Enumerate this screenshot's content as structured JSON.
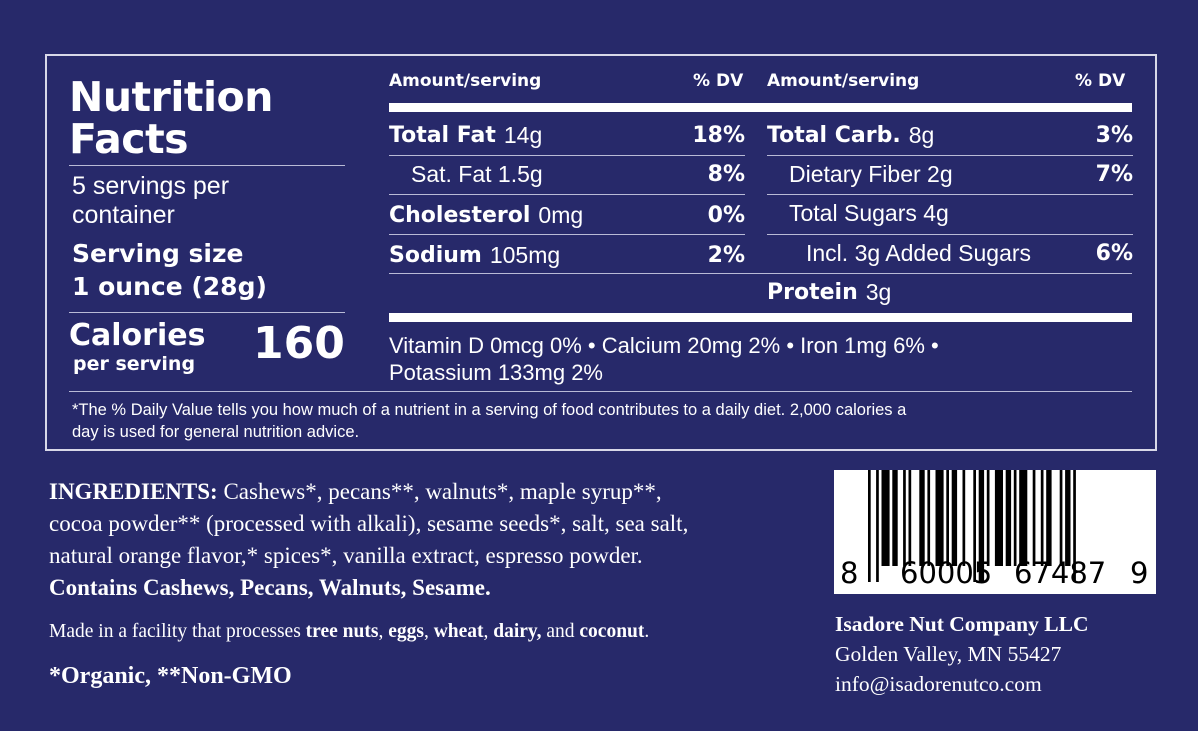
{
  "nutrition": {
    "title_line1": "Nutrition",
    "title_line2": "Facts",
    "servings_per_container": "5 servings per container",
    "serving_size_label": "Serving size",
    "serving_size_value": "1 ounce (28g)",
    "calories_label": "Calories",
    "calories_sub": "per serving",
    "calories_value": "160",
    "header_amount": "Amount/serving",
    "header_dv": "% DV",
    "left_rows": [
      {
        "name": "Total Fat",
        "amount": "14g",
        "dv": "18%"
      },
      {
        "name": "Sat. Fat 1.5g",
        "amount": "",
        "dv": "8%"
      },
      {
        "name": "Cholesterol",
        "amount": "0mg",
        "dv": "0%"
      },
      {
        "name": "Sodium",
        "amount": "105mg",
        "dv": "2%"
      }
    ],
    "right_rows": [
      {
        "name": "Total Carb.",
        "amount": "8g",
        "dv": "3%"
      },
      {
        "name": "Dietary Fiber 2g",
        "amount": "",
        "dv": "7%"
      },
      {
        "name": "Total Sugars 4g",
        "amount": "",
        "dv": ""
      },
      {
        "name": "Incl. 3g Added Sugars",
        "amount": "",
        "dv": "6%"
      }
    ],
    "protein_label": "Protein",
    "protein_amount": "3g",
    "vitamins_line1": "Vitamin D 0mcg 0% • Calcium 20mg 2% • Iron 1mg 6% •",
    "vitamins_line2": "Potassium 133mg 2%",
    "footnote_line1": "*The % Daily Value tells you how much of a nutrient in a serving of food contributes to a daily diet. 2,000 calories a",
    "footnote_line2": "day is used for general nutrition advice."
  },
  "ingredients": {
    "label": "INGREDIENTS:",
    "line1": "Cashews*, pecans**, walnuts*, maple syrup**,",
    "line2": "cocoa powder** (processed with alkali), sesame seeds*, salt, sea salt,",
    "line3": "natural orange flavor,* spices*, vanilla extract, espresso powder.",
    "contains": "Contains Cashews, Pecans, Walnuts, Sesame.",
    "facility_prefix": "Made in a facility that processes ",
    "allergens": [
      "tree nuts",
      ", ",
      "eggs",
      ", ",
      "wheat",
      ", ",
      "dairy,",
      " and ",
      "coconut",
      "."
    ],
    "organic_note": "*Organic, **Non-GMO"
  },
  "barcode": {
    "digits_first": "8",
    "digits_left": "60005",
    "digits_right": "67487",
    "digits_last": "9"
  },
  "company": {
    "name": "Isadore Nut Company LLC",
    "address": "Golden Valley, MN 55427",
    "email": "info@isadorenutco.com"
  }
}
